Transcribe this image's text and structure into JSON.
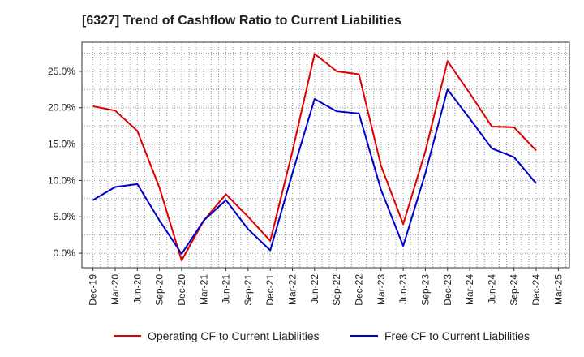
{
  "chart_data": {
    "type": "line",
    "title": "[6327]  Trend of Cashflow Ratio to Current Liabilities",
    "xlabel": "",
    "ylabel": "",
    "x_tick_labels": [
      "Dec-19",
      "Mar-20",
      "Jun-20",
      "Sep-20",
      "Dec-20",
      "Mar-21",
      "Jun-21",
      "Sep-21",
      "Dec-21",
      "Mar-22",
      "Jun-22",
      "Sep-22",
      "Dec-22",
      "Mar-23",
      "Jun-23",
      "Sep-23",
      "Dec-23",
      "Mar-24",
      "Jun-24",
      "Sep-24",
      "Dec-24",
      "Mar-25"
    ],
    "y_tick_labels": [
      "0.0%",
      "5.0%",
      "10.0%",
      "15.0%",
      "20.0%",
      "25.0%"
    ],
    "y_ticks": [
      0,
      5,
      10,
      15,
      20,
      25
    ],
    "ylim": [
      -2,
      29
    ],
    "grid": true,
    "legend_position": "bottom",
    "series": [
      {
        "name": "Operating CF to Current Liabilities",
        "color": "#dd0000",
        "values": [
          20.2,
          19.6,
          16.8,
          9.0,
          -1.0,
          4.5,
          8.1,
          5.0,
          1.7,
          14.0,
          27.4,
          25.0,
          24.6,
          12.0,
          4.0,
          14.0,
          26.4,
          22.0,
          17.4,
          17.3,
          14.1,
          null
        ]
      },
      {
        "name": "Free CF to Current Liabilities",
        "color": "#0000cc",
        "values": [
          7.3,
          9.1,
          9.5,
          4.5,
          -0.1,
          4.5,
          7.3,
          3.3,
          0.4,
          11.0,
          21.2,
          19.5,
          19.2,
          8.7,
          1.0,
          11.0,
          22.5,
          18.5,
          14.4,
          13.2,
          9.6,
          null
        ]
      }
    ]
  }
}
